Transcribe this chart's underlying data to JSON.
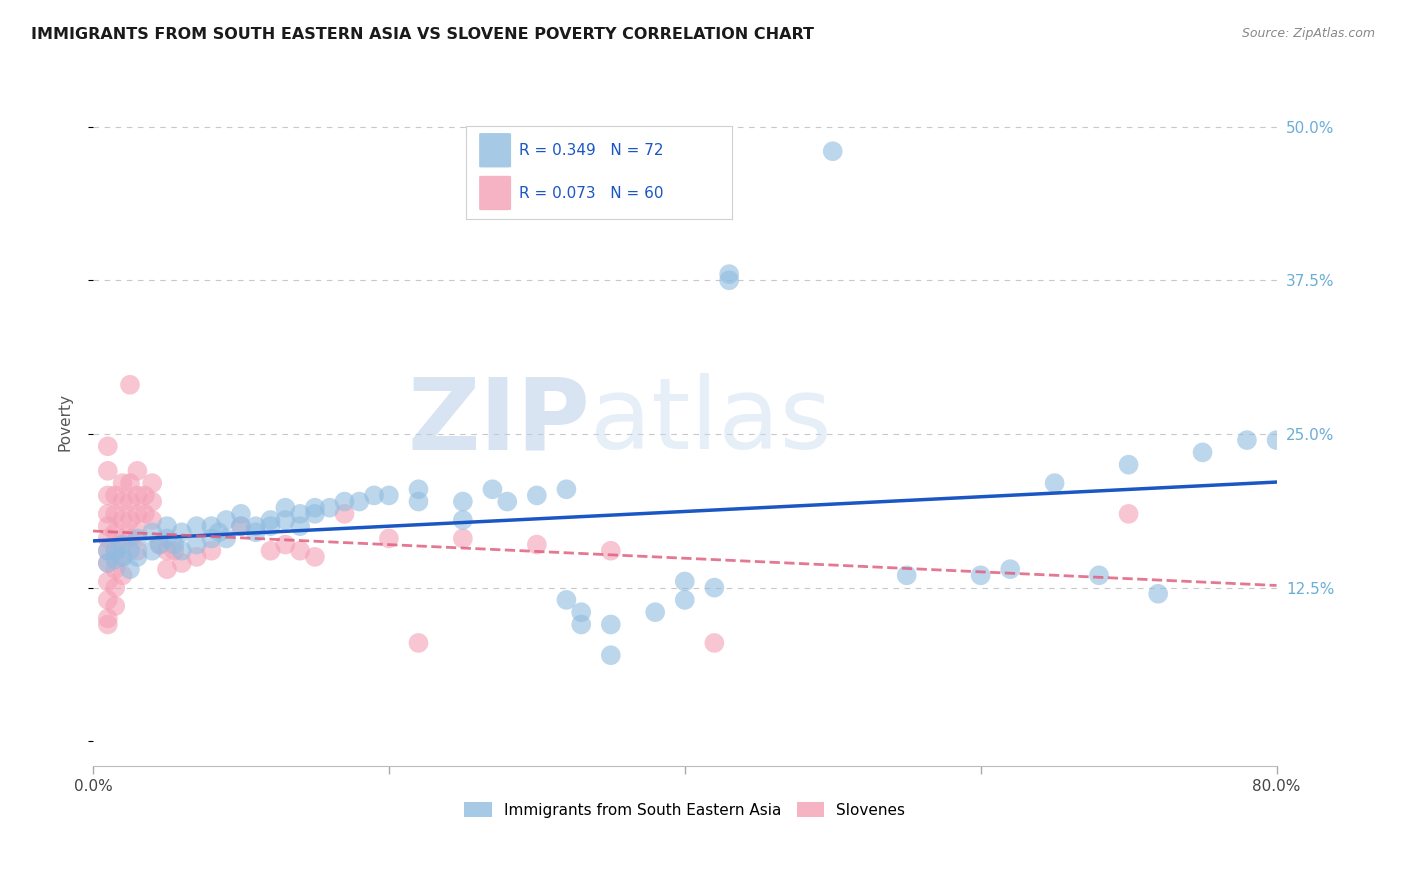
{
  "title": "IMMIGRANTS FROM SOUTH EASTERN ASIA VS SLOVENE POVERTY CORRELATION CHART",
  "source": "Source: ZipAtlas.com",
  "ylabel": "Poverty",
  "yticks": [
    0.0,
    12.5,
    25.0,
    37.5,
    50.0
  ],
  "ytick_labels": [
    "",
    "12.5%",
    "25.0%",
    "37.5%",
    "50.0%"
  ],
  "xmin": 0.0,
  "xmax": 80.0,
  "ymin": -2.0,
  "ymax": 54.0,
  "watermark_zip": "ZIP",
  "watermark_atlas": "atlas",
  "legend_line1": "R = 0.349   N = 72",
  "legend_line2": "R = 0.073   N = 60",
  "legend_label_blue": "Immigrants from South Eastern Asia",
  "legend_label_pink": "Slovenes",
  "blue_color": "#90bce0",
  "pink_color": "#f4a0b5",
  "line_blue": "#1a56c4",
  "line_pink": "#e06080",
  "background_color": "#ffffff",
  "grid_color": "#c8c8c8",
  "title_color": "#1a1a1a",
  "source_color": "#888888",
  "tick_color_right": "#6baed6",
  "blue_scatter": [
    [
      1.0,
      15.5
    ],
    [
      1.0,
      14.5
    ],
    [
      1.5,
      15.5
    ],
    [
      1.5,
      14.8
    ],
    [
      2.0,
      16.0
    ],
    [
      2.0,
      15.0
    ],
    [
      2.5,
      15.5
    ],
    [
      2.5,
      14.0
    ],
    [
      3.0,
      16.5
    ],
    [
      3.0,
      15.0
    ],
    [
      4.0,
      17.0
    ],
    [
      4.0,
      15.5
    ],
    [
      4.5,
      16.0
    ],
    [
      5.0,
      17.5
    ],
    [
      5.0,
      16.5
    ],
    [
      5.5,
      16.0
    ],
    [
      6.0,
      17.0
    ],
    [
      6.0,
      15.5
    ],
    [
      7.0,
      17.5
    ],
    [
      7.0,
      16.0
    ],
    [
      8.0,
      17.5
    ],
    [
      8.0,
      16.5
    ],
    [
      8.5,
      17.0
    ],
    [
      9.0,
      18.0
    ],
    [
      9.0,
      16.5
    ],
    [
      10.0,
      17.5
    ],
    [
      10.0,
      18.5
    ],
    [
      11.0,
      17.5
    ],
    [
      11.0,
      17.0
    ],
    [
      12.0,
      18.0
    ],
    [
      12.0,
      17.5
    ],
    [
      13.0,
      18.0
    ],
    [
      13.0,
      19.0
    ],
    [
      14.0,
      18.5
    ],
    [
      14.0,
      17.5
    ],
    [
      15.0,
      18.5
    ],
    [
      15.0,
      19.0
    ],
    [
      16.0,
      19.0
    ],
    [
      17.0,
      19.5
    ],
    [
      18.0,
      19.5
    ],
    [
      19.0,
      20.0
    ],
    [
      20.0,
      20.0
    ],
    [
      22.0,
      20.5
    ],
    [
      22.0,
      19.5
    ],
    [
      25.0,
      19.5
    ],
    [
      25.0,
      18.0
    ],
    [
      27.0,
      20.5
    ],
    [
      28.0,
      19.5
    ],
    [
      30.0,
      20.0
    ],
    [
      32.0,
      20.5
    ],
    [
      32.0,
      11.5
    ],
    [
      33.0,
      10.5
    ],
    [
      33.0,
      9.5
    ],
    [
      35.0,
      9.5
    ],
    [
      35.0,
      7.0
    ],
    [
      38.0,
      10.5
    ],
    [
      40.0,
      13.0
    ],
    [
      40.0,
      11.5
    ],
    [
      42.0,
      12.5
    ],
    [
      43.0,
      38.0
    ],
    [
      43.0,
      37.5
    ],
    [
      50.0,
      48.0
    ],
    [
      55.0,
      13.5
    ],
    [
      60.0,
      13.5
    ],
    [
      62.0,
      14.0
    ],
    [
      65.0,
      21.0
    ],
    [
      68.0,
      13.5
    ],
    [
      70.0,
      22.5
    ],
    [
      72.0,
      12.0
    ],
    [
      75.0,
      23.5
    ],
    [
      78.0,
      24.5
    ],
    [
      80.0,
      24.5
    ]
  ],
  "pink_scatter": [
    [
      1.0,
      24.0
    ],
    [
      1.0,
      22.0
    ],
    [
      1.0,
      20.0
    ],
    [
      1.0,
      18.5
    ],
    [
      1.0,
      17.5
    ],
    [
      1.0,
      16.5
    ],
    [
      1.0,
      15.5
    ],
    [
      1.0,
      14.5
    ],
    [
      1.0,
      13.0
    ],
    [
      1.0,
      11.5
    ],
    [
      1.0,
      10.0
    ],
    [
      1.0,
      9.5
    ],
    [
      1.5,
      20.0
    ],
    [
      1.5,
      18.5
    ],
    [
      1.5,
      17.0
    ],
    [
      1.5,
      15.5
    ],
    [
      1.5,
      14.0
    ],
    [
      1.5,
      12.5
    ],
    [
      1.5,
      11.0
    ],
    [
      2.0,
      21.0
    ],
    [
      2.0,
      19.5
    ],
    [
      2.0,
      18.0
    ],
    [
      2.0,
      16.5
    ],
    [
      2.0,
      15.0
    ],
    [
      2.0,
      13.5
    ],
    [
      2.5,
      29.0
    ],
    [
      2.5,
      21.0
    ],
    [
      2.5,
      19.5
    ],
    [
      2.5,
      18.0
    ],
    [
      2.5,
      16.5
    ],
    [
      3.0,
      22.0
    ],
    [
      3.0,
      20.0
    ],
    [
      3.0,
      18.5
    ],
    [
      3.0,
      17.0
    ],
    [
      3.0,
      15.5
    ],
    [
      3.5,
      20.0
    ],
    [
      3.5,
      18.5
    ],
    [
      4.0,
      21.0
    ],
    [
      4.0,
      19.5
    ],
    [
      4.0,
      18.0
    ],
    [
      4.5,
      16.0
    ],
    [
      5.0,
      15.5
    ],
    [
      5.0,
      14.0
    ],
    [
      5.5,
      15.5
    ],
    [
      6.0,
      14.5
    ],
    [
      7.0,
      15.0
    ],
    [
      8.0,
      15.5
    ],
    [
      10.0,
      17.5
    ],
    [
      12.0,
      15.5
    ],
    [
      13.0,
      16.0
    ],
    [
      14.0,
      15.5
    ],
    [
      15.0,
      15.0
    ],
    [
      17.0,
      18.5
    ],
    [
      20.0,
      16.5
    ],
    [
      22.0,
      8.0
    ],
    [
      25.0,
      16.5
    ],
    [
      30.0,
      16.0
    ],
    [
      35.0,
      15.5
    ],
    [
      42.0,
      8.0
    ],
    [
      70.0,
      18.5
    ]
  ]
}
